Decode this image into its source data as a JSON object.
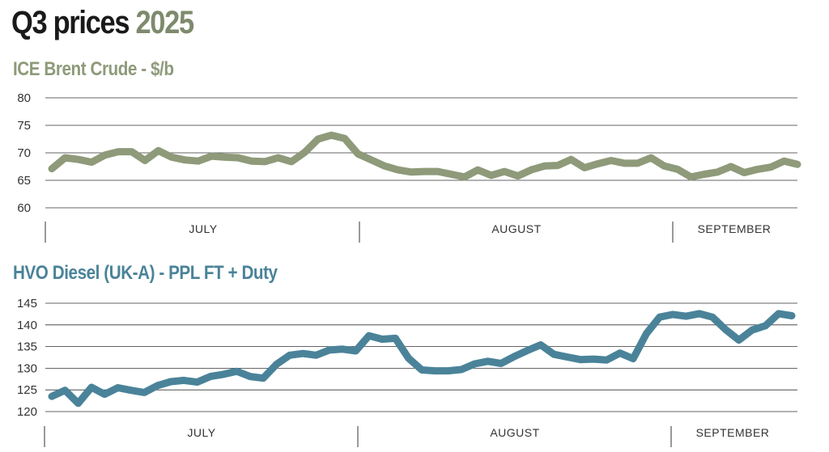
{
  "page": {
    "title_main": "Q3 prices",
    "title_year": "2025"
  },
  "colors": {
    "title_dark": "#1a1a1a",
    "title_accent": "#7e8a6c",
    "brent_line": "#8e9a79",
    "hvo_line": "#4a8399",
    "grid": "#333333"
  },
  "chart_data": [
    {
      "type": "line",
      "title": "ICE Brent Crude - $/b",
      "ylim": [
        60,
        80
      ],
      "yticks": [
        80,
        75,
        70,
        65,
        60
      ],
      "months": [
        "JULY",
        "AUGUST",
        "SEPTEMBER"
      ],
      "grid": true,
      "series": [
        {
          "values": [
            67.1,
            69.1,
            68.8,
            68.3,
            69.6,
            70.2,
            70.2,
            68.6,
            70.4,
            69.2,
            68.7,
            68.5,
            69.4,
            69.2,
            69.1,
            68.5,
            68.4,
            69.1,
            68.4,
            70.1,
            72.5,
            73.2,
            72.6,
            69.8,
            68.7,
            67.6,
            66.9,
            66.5,
            66.6,
            66.6,
            66.1,
            65.6,
            66.9,
            65.9,
            66.6,
            65.8,
            66.9,
            67.6,
            67.7,
            68.8,
            67.3,
            68.0,
            68.6,
            68.1,
            68.1,
            69.1,
            67.6,
            67.0,
            65.6,
            66.1,
            66.5,
            67.5,
            66.4,
            67.0,
            67.4,
            68.5,
            67.9
          ]
        }
      ]
    },
    {
      "type": "line",
      "title": "HVO Diesel (UK-A) - PPL FT + Duty",
      "ylim": [
        120,
        145
      ],
      "yticks": [
        145,
        140,
        135,
        130,
        125,
        120
      ],
      "months": [
        "JULY",
        "AUGUST",
        "SEPTEMBER"
      ],
      "grid": true,
      "series": [
        {
          "values": [
            123.5,
            124.9,
            121.9,
            125.6,
            124.0,
            125.5,
            124.9,
            124.4,
            126.0,
            126.9,
            127.2,
            126.8,
            128.1,
            128.6,
            129.3,
            128.1,
            127.7,
            130.9,
            133.0,
            133.4,
            133.0,
            134.2,
            134.4,
            134.0,
            137.5,
            136.7,
            136.9,
            132.3,
            129.6,
            129.4,
            129.4,
            129.7,
            131.0,
            131.6,
            131.1,
            132.7,
            134.1,
            135.4,
            133.2,
            132.6,
            132.0,
            132.1,
            131.9,
            133.5,
            132.2,
            138.0,
            141.8,
            142.4,
            142.0,
            142.6,
            141.8,
            138.9,
            136.5,
            138.8,
            139.8,
            142.6,
            142.1
          ]
        }
      ]
    }
  ]
}
